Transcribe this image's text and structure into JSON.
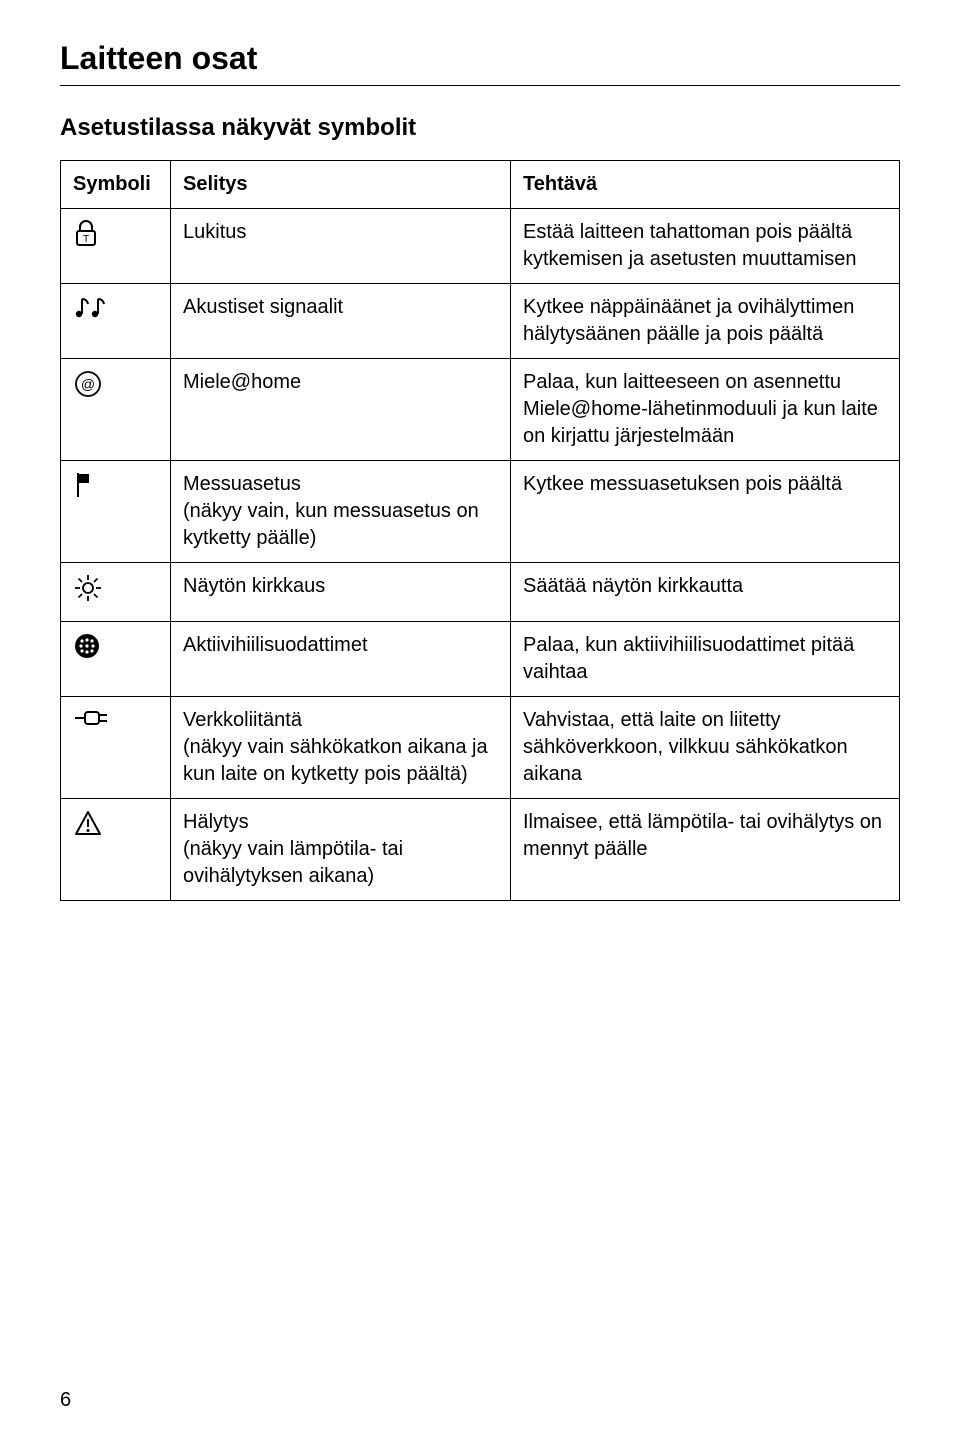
{
  "page": {
    "title": "Laitteen osat",
    "subtitle": "Asetustilassa näkyvät symbolit",
    "page_number": "6"
  },
  "table": {
    "headers": {
      "symbol": "Symboli",
      "desc": "Selitys",
      "task": "Tehtävä"
    },
    "rows": [
      {
        "icon": "lock-icon",
        "desc": "Lukitus",
        "task": "Estää laitteen tahattoman pois päältä kytkemisen ja asetusten muuttamisen"
      },
      {
        "icon": "sound-icon",
        "desc": "Akustiset signaalit",
        "task": "Kytkee näppäinäänet ja ovihälyttimen hälytysäänen päälle ja pois päältä"
      },
      {
        "icon": "miele-home-icon",
        "desc": "Miele@home",
        "task": "Palaa, kun laitteeseen on asennettu Miele@home-lähetinmoduuli ja kun laite on kirjattu järjestelmään"
      },
      {
        "icon": "flag-icon",
        "desc": "Messuasetus\n(näkyy vain, kun messuasetus on kytketty päälle)",
        "task": "Kytkee messuasetuksen pois päältä"
      },
      {
        "icon": "brightness-icon",
        "desc": "Näytön kirkkaus",
        "task": "Säätää näytön kirkkautta"
      },
      {
        "icon": "filter-icon",
        "desc": "Aktiivihiilisuodattimet",
        "task": "Palaa, kun aktiivihiilisuodattimet pitää vaihtaa"
      },
      {
        "icon": "plug-icon",
        "desc": "Verkkoliitäntä\n(näkyy vain sähkökatkon aikana ja kun laite on kytketty pois päältä)",
        "task": "Vahvistaa, että laite on liitetty sähköverkkoon, vilkkuu sähkökatkon aikana"
      },
      {
        "icon": "alert-icon",
        "desc": "Hälytys\n(näkyy vain lämpötila- tai ovihälytyksen aikana)",
        "task": "Ilmaisee, että lämpötila- tai ovihälytys on mennyt päälle"
      }
    ]
  },
  "colors": {
    "text": "#000000",
    "border": "#000000",
    "bg": "#ffffff"
  },
  "fonts": {
    "title_size": 32,
    "subtitle_size": 24,
    "body_size": 20
  }
}
